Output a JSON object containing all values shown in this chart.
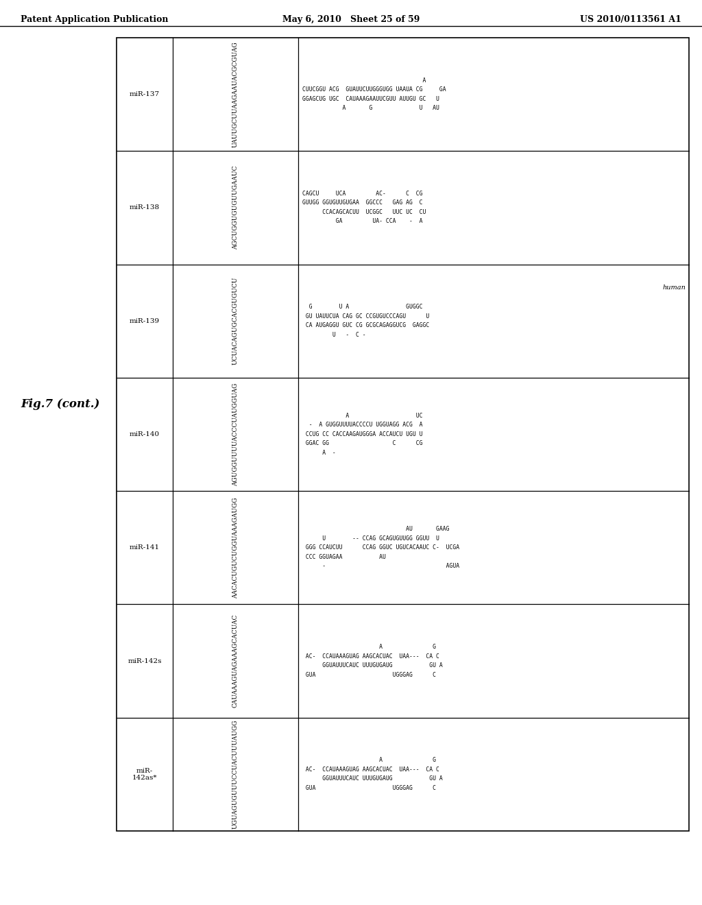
{
  "page_bg": "#ffffff",
  "header_left": "Patent Application Publication",
  "header_center": "May 6, 2010   Sheet 25 of 59",
  "header_right": "US 2010/0113561 A1",
  "fig_label": "Fig.7 (cont.)",
  "rows": [
    {
      "name": "miR-137",
      "seq": "UAUUGCUUAAGAAUACGCGUAG",
      "struct": [
        "                                    A",
        "CUUCGGU ACG  GUAUUCUUGGGUGG UAAUA CG     GA",
        "GGAGCUG UGC  CAUAAAGAAUUCGUU AUUGU GC   U",
        "            A       G              U   AU"
      ]
    },
    {
      "name": "miR-138",
      "seq": "AGCUGGUGUGUUGAAUC",
      "struct": [
        "CAGCU     UCA         AC-      C  CG",
        "GUUGG GGUGUUGUGAA  GGCCC   GAG AG  C",
        "      CCACAGCACUU  UCGGC   UUC UC  CU",
        "          GA         UA- CCA    -  A"
      ]
    },
    {
      "name": "miR-139",
      "seq": "UCUACAGUGCACGUGUCU",
      "struct": [
        "  G        U A                 GUGGC",
        " GU UAUUCUA CAG GC CCGUGUCCCAGU      U",
        " CA AUGAGGU GUC CG GCGCAGAGGUCG  GAGGC",
        "         U   -  C -"
      ],
      "human_label": true
    },
    {
      "name": "miR-140",
      "seq": "AGUGGUUUUACCCUAUGGUAG",
      "struct": [
        "             A                    UC",
        "  -  A GUGGUUUUACCCCU UGGUAGG ACG  A",
        " CCUG CC CACCAAGAUGGGA ACCAUCU UGU U",
        " GGAC GG                   C      CG",
        "      A  -"
      ]
    },
    {
      "name": "miR-141",
      "seq": "AACACUGUCUGGUAAAGAUGG",
      "struct": [
        "                               AU       GAAG",
        "      U        -- CCAG GCAGUGUUGG GGUU  U",
        " GGG CCAUCUU      CCAG GGUC UGUCACAAUC C-  UCGA",
        " CCC GGUAGAA           AU",
        "      -                                    AGUA"
      ]
    },
    {
      "name": "miR-142s",
      "seq": "CAUAAAGUAGAAAGCACUAC",
      "struct": [
        "                       A               G",
        " AC-  CCAUAAAGUAG AAGCACUAC  UAA---  CA C",
        "      GGUAUUUCAUC UUUGUGAUG           GU A",
        " GUA                       UGGGAG      C"
      ]
    },
    {
      "name": "miR-\n142as*",
      "seq": "UGUAGUGUUUCCUACUUUAUGG",
      "struct": [
        "                       A               G",
        " AC-  CCAUAAAGUAG AAGCACUAC  UAA---  CA C",
        "      GGUAUUUCAUC UUUGUGAUG           GU A",
        " GUA                       UGGGAG      C"
      ]
    }
  ]
}
